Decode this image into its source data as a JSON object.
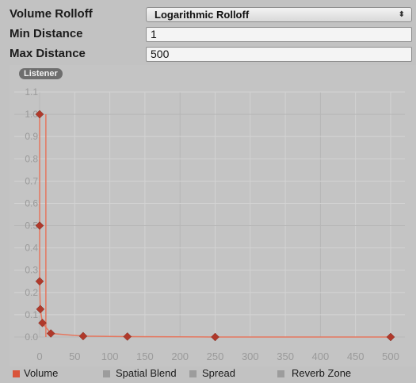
{
  "properties": {
    "volume_rolloff": {
      "label": "Volume Rolloff",
      "value": "Logarithmic Rolloff"
    },
    "min_distance": {
      "label": "Min Distance",
      "value": "1"
    },
    "max_distance": {
      "label": "Max Distance",
      "value": "500"
    }
  },
  "badge": "Listener",
  "icons": {
    "dropdown": "updown-arrow-icon"
  },
  "legend": [
    {
      "label": "Volume",
      "color": "#d9543a"
    },
    {
      "label": "Spatial Blend",
      "color": "#9c9c9c"
    },
    {
      "label": "Spread",
      "color": "#9c9c9c"
    },
    {
      "label": "Reverb Zone",
      "color": "#9c9c9c"
    }
  ],
  "colors": {
    "curve": "#e5775f",
    "key": "#b0392b",
    "grid": "#d3d3d3",
    "grid_major": "#b7b7b7"
  },
  "chart_data": {
    "type": "line",
    "x": [
      0,
      500
    ],
    "xlim": [
      0,
      500
    ],
    "ylim": [
      0,
      1.1
    ],
    "xticks": [
      0,
      50,
      100,
      150,
      200,
      250,
      300,
      350,
      400,
      450,
      500
    ],
    "xtick_labels": [
      "0",
      "50",
      "100",
      "150",
      "200",
      "250",
      "300",
      "350",
      "400",
      "450",
      "500"
    ],
    "yticks": [
      0,
      0.1,
      0.2,
      0.3,
      0.4,
      0.5,
      0.6,
      0.7,
      0.8,
      0.9,
      1.0,
      1.1
    ],
    "ytick_labels": [
      "0.0",
      "0.1",
      "0.2",
      "0.3",
      "0.4",
      "0.5",
      "0.6",
      "0.7",
      "0.8",
      "0.9",
      "1.0",
      "1.1"
    ],
    "grid": true,
    "series": [
      {
        "name": "Volume",
        "points": [
          [
            0,
            1.0
          ],
          [
            0,
            0.5
          ],
          [
            0,
            0.25
          ],
          [
            1,
            0.125
          ],
          [
            4,
            0.063
          ],
          [
            16,
            0.016
          ],
          [
            62,
            0.004
          ],
          [
            125,
            0.002
          ],
          [
            250,
            0.0
          ],
          [
            500,
            0.0
          ]
        ],
        "key_points": [
          [
            0,
            1.0
          ],
          [
            0,
            0.5
          ],
          [
            0,
            0.25
          ],
          [
            1,
            0.125
          ],
          [
            4,
            0.063
          ],
          [
            16,
            0.016
          ],
          [
            62,
            0.004
          ],
          [
            125,
            0.002
          ],
          [
            250,
            0.0
          ],
          [
            500,
            0.0
          ]
        ]
      }
    ],
    "markers": {
      "min_distance": 1,
      "max_distance": 500
    }
  }
}
